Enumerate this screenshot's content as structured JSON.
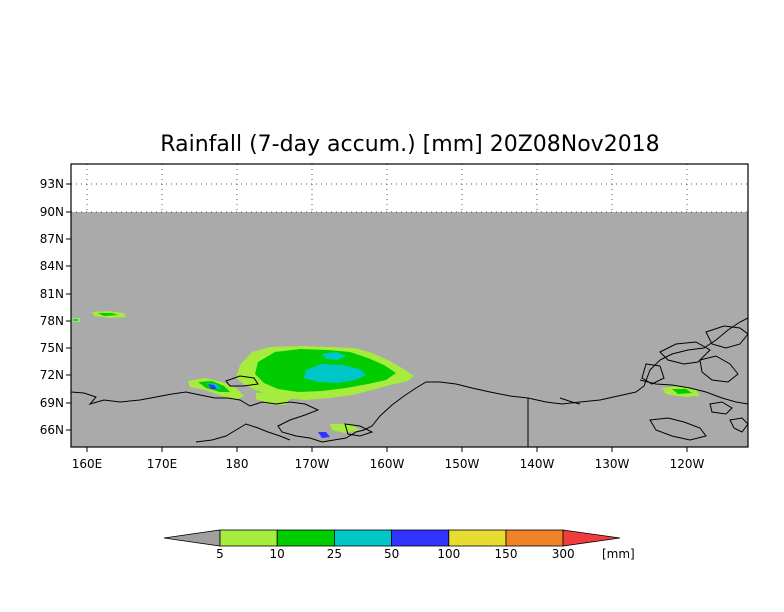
{
  "title": "Rainfall (7-day accum.) [mm] 20Z08Nov2018",
  "lat_ticks": [
    "93N",
    "90N",
    "87N",
    "84N",
    "81N",
    "78N",
    "75N",
    "72N",
    "69N",
    "66N"
  ],
  "lon_ticks": [
    "160E",
    "170E",
    "180",
    "170W",
    "160W",
    "150W",
    "140W",
    "130W",
    "120W"
  ],
  "colorbar": {
    "labels": [
      "5",
      "10",
      "25",
      "50",
      "100",
      "150",
      "300"
    ],
    "unit": "[mm]",
    "colors": [
      "#a0a0a0",
      "#a6ec3c",
      "#00cc00",
      "#00c7c7",
      "#3333ff",
      "#e6dc32",
      "#f08228",
      "#f03c3c"
    ]
  },
  "map": {
    "land_color": "#aaaaaa",
    "no_data_color": "#ffffff",
    "grid": "dotted"
  }
}
